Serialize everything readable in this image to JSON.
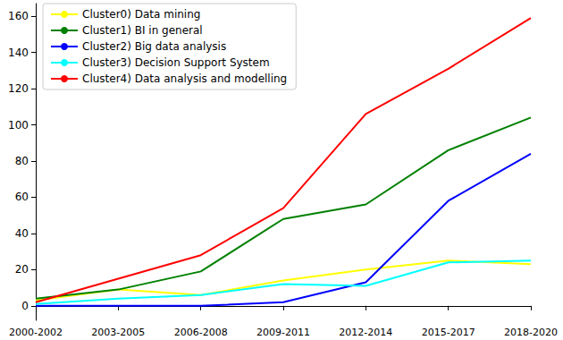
{
  "chart_data": {
    "type": "line",
    "categories": [
      "2000-2002",
      "2003-2005",
      "2006-2008",
      "2009-2011",
      "2012-2014",
      "2015-2017",
      "2018-2020"
    ],
    "series": [
      {
        "name": "Cluster0) Data mining",
        "color": "#ffff00",
        "values": [
          3,
          9,
          6,
          14,
          20,
          25,
          23
        ]
      },
      {
        "name": "Cluster1) BI in general",
        "color": "#008000",
        "values": [
          4,
          9,
          19,
          48,
          56,
          86,
          104
        ]
      },
      {
        "name": "Cluster2) Big data analysis",
        "color": "#0000ff",
        "values": [
          0,
          0,
          0,
          2,
          13,
          58,
          84
        ]
      },
      {
        "name": "Cluster3) Decision Support System",
        "color": "#00ffff",
        "values": [
          1,
          4,
          6,
          12,
          11,
          24,
          25
        ]
      },
      {
        "name": "Cluster4) Data analysis and modelling",
        "color": "#ff0000",
        "values": [
          2,
          15,
          28,
          54,
          106,
          131,
          159
        ]
      }
    ],
    "ylim": [
      -8,
      167
    ],
    "yticks": [
      0,
      20,
      40,
      60,
      80,
      100,
      120,
      140,
      160
    ],
    "grid": false,
    "legend": "upper left"
  }
}
